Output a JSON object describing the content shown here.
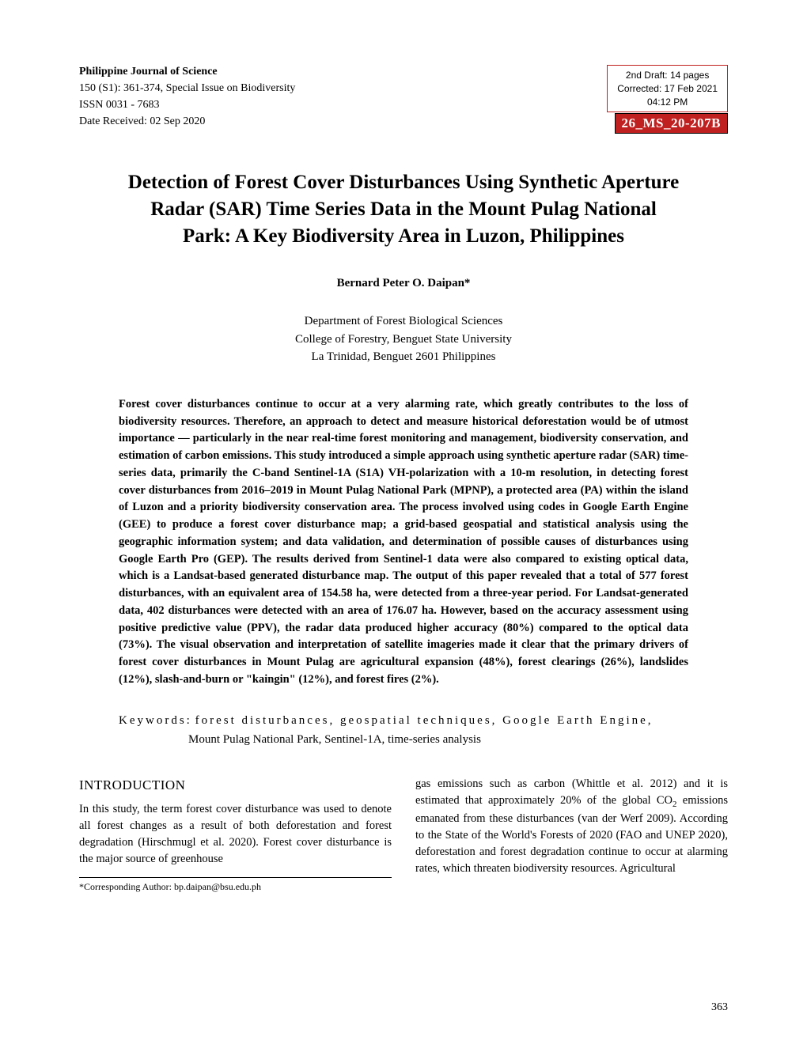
{
  "meta": {
    "journal_name": "Philippine Journal of Science",
    "issue_line": "150 (S1): 361-374, Special Issue on Biodiversity",
    "issn_line": "ISSN 0031 - 7683",
    "date_received": "Date Received: 02 Sep 2020"
  },
  "draft_box": {
    "line1": "2nd Draft: 14 pages",
    "line2": "Corrected: 17 Feb 2021",
    "line3": "04:12 PM"
  },
  "ms_badge": "26_MS_20-207B",
  "title": "Detection of Forest Cover Disturbances Using Synthetic Aperture Radar (SAR) Time Series Data in the Mount Pulag National Park: A Key Biodiversity Area in Luzon, Philippines",
  "author": "Bernard Peter O. Daipan*",
  "affiliation": {
    "line1": "Department of Forest Biological Sciences",
    "line2": "College of Forestry, Benguet State University",
    "line3": "La Trinidad, Benguet 2601 Philippines"
  },
  "abstract": "Forest cover disturbances continue to occur at a very alarming rate, which greatly contributes to the loss of biodiversity resources. Therefore, an approach to detect and measure historical deforestation would be of utmost importance — particularly in the near real-time forest monitoring and management, biodiversity conservation, and estimation of carbon emissions. This study introduced a simple approach using synthetic aperture radar (SAR) time-series data, primarily the C-band Sentinel-1A (S1A) VH-polarization with a 10-m resolution, in detecting forest cover disturbances from 2016–2019 in Mount Pulag National Park (MPNP), a protected area (PA) within the island of Luzon and a priority biodiversity conservation area. The process involved using codes in Google Earth Engine (GEE) to produce a forest cover disturbance map; a grid-based geospatial and statistical analysis using the geographic information system; and data validation, and determination of possible causes of disturbances using Google Earth Pro (GEP). The results derived from Sentinel-1 data were also compared to existing optical data, which is a Landsat-based generated disturbance map. The output of this paper revealed that a total of 577 forest disturbances, with an equivalent area of 154.58 ha, were detected from a three-year period. For Landsat-generated data, 402 disturbances were detected with an area of 176.07 ha. However, based on the accuracy assessment using positive predictive value (PPV), the radar data produced higher accuracy (80%) compared to the optical data (73%). The visual observation and interpretation of satellite imageries made it clear that the primary drivers of forest cover disturbances in Mount Pulag are agricultural expansion (48%), forest clearings (26%), landslides (12%), slash-and-burn or \"kaingin\" (12%), and forest fires (2%).",
  "keywords": {
    "label": "Keywords:",
    "line1": "forest disturbances, geospatial techniques, Google Earth Engine,",
    "line2": "Mount Pulag National Park, Sentinel-1A, time-series analysis"
  },
  "section": {
    "heading": "INTRODUCTION",
    "col1": "In this study, the term forest cover disturbance was used to denote all forest changes as a result of both deforestation and forest degradation (Hirschmugl et al. 2020). Forest cover disturbance is the major source of greenhouse",
    "col2_part1": "gas emissions such as carbon (Whittle et al. 2012) and it is estimated that approximately 20% of the global CO",
    "col2_sub": "2",
    "col2_part2": " emissions emanated from these disturbances (van der Werf 2009). According to the State of the World's Forests of 2020 (FAO and UNEP 2020), deforestation and forest degradation continue to occur at alarming rates, which threaten biodiversity resources. Agricultural"
  },
  "footnote": "*Corresponding Author: bp.daipan@bsu.edu.ph",
  "page_number": "363",
  "colors": {
    "badge_bg": "#c02020",
    "badge_text": "#ffffff",
    "draft_border": "#c02020",
    "text": "#000000",
    "background": "#ffffff"
  }
}
